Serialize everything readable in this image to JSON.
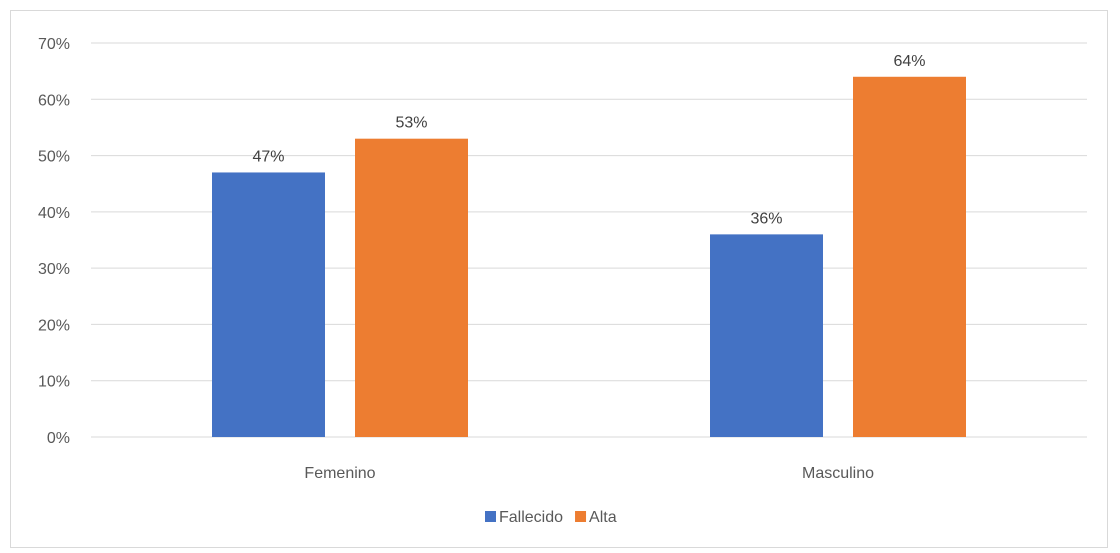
{
  "chart_data": {
    "type": "bar",
    "categories": [
      "Femenino",
      "Masculino"
    ],
    "series": [
      {
        "name": "Fallecido",
        "values": [
          47,
          36
        ],
        "color": "#4472C4",
        "labels": [
          "47%",
          "36%"
        ]
      },
      {
        "name": "Alta",
        "values": [
          53,
          64
        ],
        "color": "#ED7D31",
        "labels": [
          "53%",
          "64%"
        ]
      }
    ],
    "ylim": [
      0,
      70
    ],
    "yticks": [
      0,
      10,
      20,
      30,
      40,
      50,
      60,
      70
    ],
    "ytick_labels": [
      "0%",
      "10%",
      "20%",
      "30%",
      "40%",
      "50%",
      "60%",
      "70%"
    ],
    "grid": true,
    "legend": "bottom"
  }
}
